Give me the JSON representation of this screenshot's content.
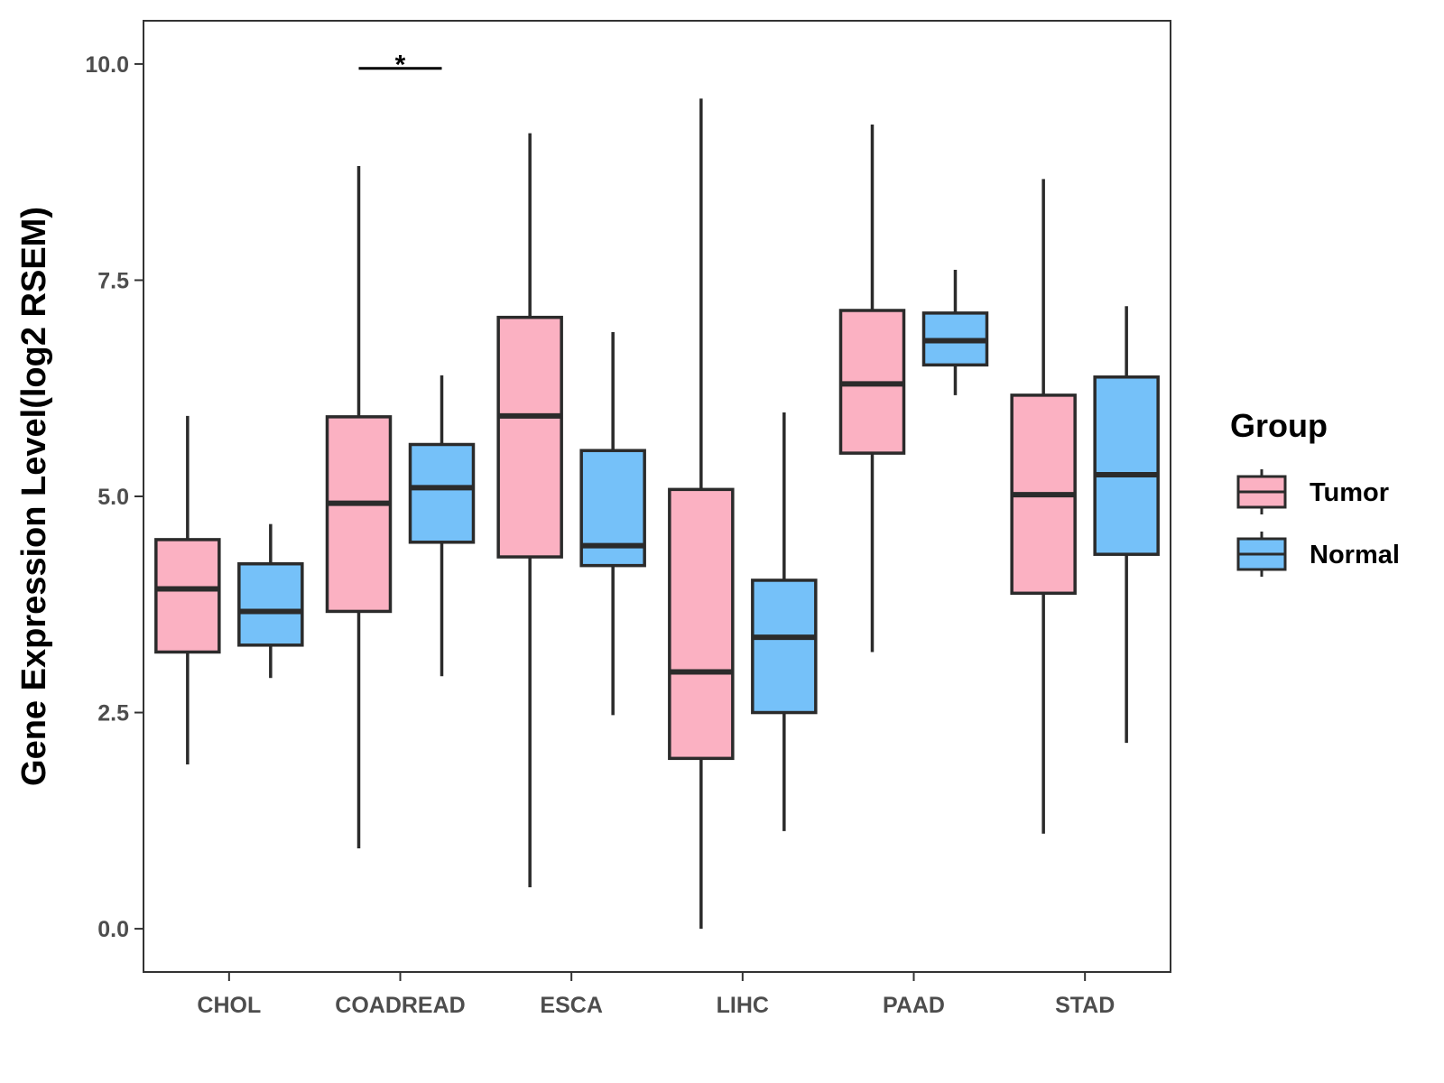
{
  "chart_data": {
    "type": "boxplot",
    "title": "",
    "xlabel": "",
    "ylabel": "Gene Expression Level(log2 RSEM)",
    "ylim": [
      -0.5,
      10.5
    ],
    "yticks": [
      0.0,
      2.5,
      5.0,
      7.5,
      10.0
    ],
    "ytick_labels": [
      "0.0",
      "2.5",
      "5.0",
      "7.5",
      "10.0"
    ],
    "categories": [
      "CHOL",
      "COADREAD",
      "ESCA",
      "LIHC",
      "PAAD",
      "STAD"
    ],
    "legend": {
      "title": "Group",
      "position": "right",
      "entries": [
        {
          "name": "Tumor",
          "color": "#FBB1C2"
        },
        {
          "name": "Normal",
          "color": "#75C1F9"
        }
      ]
    },
    "series": [
      {
        "name": "Tumor",
        "color": "#FBB1C2",
        "boxes": [
          {
            "min": 1.9,
            "q1": 3.2,
            "median": 3.93,
            "q3": 4.5,
            "max": 5.93
          },
          {
            "min": 0.93,
            "q1": 3.67,
            "median": 4.92,
            "q3": 5.92,
            "max": 8.82
          },
          {
            "min": 0.48,
            "q1": 4.3,
            "median": 5.93,
            "q3": 7.07,
            "max": 9.2
          },
          {
            "min": 0.0,
            "q1": 1.97,
            "median": 2.97,
            "q3": 5.08,
            "max": 9.6
          },
          {
            "min": 3.2,
            "q1": 5.5,
            "median": 6.3,
            "q3": 7.15,
            "max": 9.3
          },
          {
            "min": 1.1,
            "q1": 3.88,
            "median": 5.02,
            "q3": 6.17,
            "max": 8.67
          }
        ]
      },
      {
        "name": "Normal",
        "color": "#75C1F9",
        "boxes": [
          {
            "min": 2.9,
            "q1": 3.28,
            "median": 3.67,
            "q3": 4.22,
            "max": 4.68
          },
          {
            "min": 2.92,
            "q1": 4.47,
            "median": 5.1,
            "q3": 5.6,
            "max": 6.4
          },
          {
            "min": 2.47,
            "q1": 4.2,
            "median": 4.43,
            "q3": 5.53,
            "max": 6.9
          },
          {
            "min": 1.13,
            "q1": 2.5,
            "median": 3.37,
            "q3": 4.03,
            "max": 5.97
          },
          {
            "min": 6.17,
            "q1": 6.52,
            "median": 6.8,
            "q3": 7.12,
            "max": 7.62
          },
          {
            "min": 2.15,
            "q1": 4.33,
            "median": 5.25,
            "q3": 6.38,
            "max": 7.2
          }
        ]
      }
    ],
    "annotations": [
      {
        "category": "COADREAD",
        "label": "*",
        "y": 9.95
      }
    ]
  }
}
